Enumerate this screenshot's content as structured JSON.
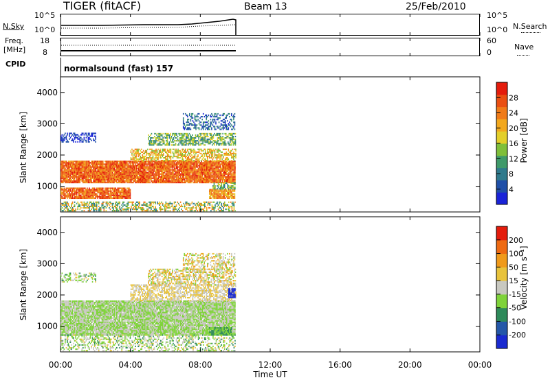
{
  "header": {
    "title": "TIGER (fitACF)",
    "beam": "Beam 13",
    "date": "25/Feb/2010"
  },
  "top_panels": {
    "nsky_label": "N.Sky",
    "nsearch_label": "N.Search",
    "freq_label_1": "Freq.",
    "freq_label_2": "[MHz]",
    "nave_label": "Nave",
    "cpid_label": "CPID",
    "cpid_value": "normalsound (fast) 157",
    "noise_ticks_left": [
      "10^5",
      "10^0"
    ],
    "noise_ticks_right": [
      "10^5",
      "10^0"
    ],
    "freq_ticks": [
      "18",
      "8"
    ],
    "nave_ticks": [
      "60",
      "0"
    ]
  },
  "chart_data": [
    {
      "type": "heatmap",
      "name": "power",
      "ylabel": "Slant Range [km]",
      "ylim": [
        180,
        4500
      ],
      "yticks": [
        "4000",
        "3000",
        "2000",
        "1000"
      ],
      "xlim": [
        0,
        24
      ],
      "colorbar_label": "Power [dB]",
      "colorbar_ticks": [
        "28",
        "24",
        "20",
        "16",
        "12",
        "8",
        "4"
      ],
      "colors": [
        "#1a23d8",
        "#1f4fa8",
        "#2f7a8c",
        "#3f9a6a",
        "#7fbf3a",
        "#e3cf2a",
        "#f2a81e",
        "#f07b18",
        "#ea4f12",
        "#e41c0c"
      ]
    },
    {
      "type": "heatmap",
      "name": "velocity",
      "ylabel": "Slant Range [km]",
      "ylim": [
        180,
        4500
      ],
      "yticks": [
        "4000",
        "3000",
        "2000",
        "1000"
      ],
      "xlim": [
        0,
        24
      ],
      "xlabel": "Time UT",
      "xticks": [
        "00:00",
        "04:00",
        "08:00",
        "12:00",
        "16:00",
        "20:00",
        "00:00"
      ],
      "colorbar_label": "Velocity [m s⁻¹]",
      "colorbar_ticks": [
        "200",
        "100",
        "50",
        "15",
        "-15",
        "-50",
        "-100",
        "-200"
      ],
      "colors": [
        "#1a2ad0",
        "#2457a8",
        "#2e8a5a",
        "#7fd33a",
        "#c8c8c0",
        "#e8c33c",
        "#f09a1a",
        "#ee6a12",
        "#e41c0c"
      ]
    }
  ]
}
